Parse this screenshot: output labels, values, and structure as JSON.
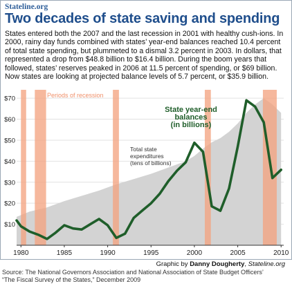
{
  "site": "Stateline.org",
  "headline": "Two decades of state saving and spending",
  "intro": "States entered both the 2007 and the last recession in 2001 with healthy cush-ions. In 2000, rainy day funds combined with states’ year-end balances reached 10.4 percent of total state spending, but plummeted to a dismal 3.2 percent in 2003. In dollars, that represented a drop from $48.8 billion to $16.4 billion. During the boom years that followed, states’ reserves peaked in 2006 at 11.5 percent of spending, or $69 billion. Now states are looking at projected balance levels of 5.7 percent, or $35.9 billion.",
  "credit": {
    "prefix": "Graphic by ",
    "author": "Danny Dougherty",
    "separator": ", ",
    "outlet": "Stateline.org"
  },
  "source": {
    "line1": "Source: The National Governors Association and National Association of State Budget Officers’",
    "line2": "“The Fiscal Survey of the States,” December 2009"
  },
  "chart_data": {
    "type": "area",
    "x_ticks": [
      1980,
      1985,
      1990,
      1995,
      2000,
      2005,
      2010
    ],
    "y_ticks": [
      0,
      10,
      20,
      30,
      40,
      50,
      60,
      70
    ],
    "y_tick_labels": [
      "",
      "$10",
      "$20",
      "$30",
      "$40",
      "$50",
      "$60",
      "$70"
    ],
    "xlim": [
      1979.5,
      2010.3
    ],
    "ylim": [
      0,
      73
    ],
    "grid": true,
    "recessions": [
      [
        1980.0,
        1980.6
      ],
      [
        1981.6,
        1982.9
      ],
      [
        1990.6,
        1991.3
      ],
      [
        2001.2,
        2001.9
      ],
      [
        2007.9,
        2009.5
      ]
    ],
    "recession_label": "Periods of recession",
    "series": [
      {
        "name": "Total state expenditures (tens of billions)",
        "label_lines": [
          "Total state",
          "expenditures",
          "(tens of billions)"
        ],
        "color": "#d3d3d3",
        "x": [
          1979.5,
          1981,
          1983,
          1985,
          1987,
          1989,
          1991,
          1993,
          1995,
          1997,
          1998,
          1999,
          2000,
          2001,
          2002,
          2003,
          2004,
          2005,
          2006,
          2007,
          2008,
          2009,
          2010
        ],
        "values": [
          13.5,
          16,
          18,
          21,
          23.5,
          26,
          29,
          31.5,
          34,
          37,
          38.5,
          40,
          42.5,
          46,
          49,
          51,
          54,
          58,
          63,
          67,
          70,
          67,
          63
        ]
      },
      {
        "name": "State year-end balances (in billions)",
        "label_lines": [
          "State year-end",
          "balances",
          "(in billions)"
        ],
        "color": "#1f5e2a",
        "x": [
          1979.5,
          1980,
          1981,
          1982,
          1983,
          1984,
          1985,
          1986,
          1987,
          1988,
          1989,
          1990,
          1991,
          1992,
          1993,
          1994,
          1995,
          1996,
          1997,
          1998,
          1999,
          2000,
          2001,
          2002,
          2003,
          2004,
          2005,
          2006,
          2007,
          2008,
          2009,
          2010
        ],
        "values": [
          11.8,
          9,
          6.5,
          5,
          3,
          6,
          9.5,
          8,
          7.5,
          10,
          12.5,
          9.5,
          3.5,
          5.5,
          13,
          16.5,
          20,
          24.5,
          30.5,
          35.5,
          39.5,
          48.8,
          44.5,
          18.5,
          16.4,
          27,
          47,
          69,
          66,
          58.5,
          32,
          35.9
        ]
      }
    ]
  }
}
